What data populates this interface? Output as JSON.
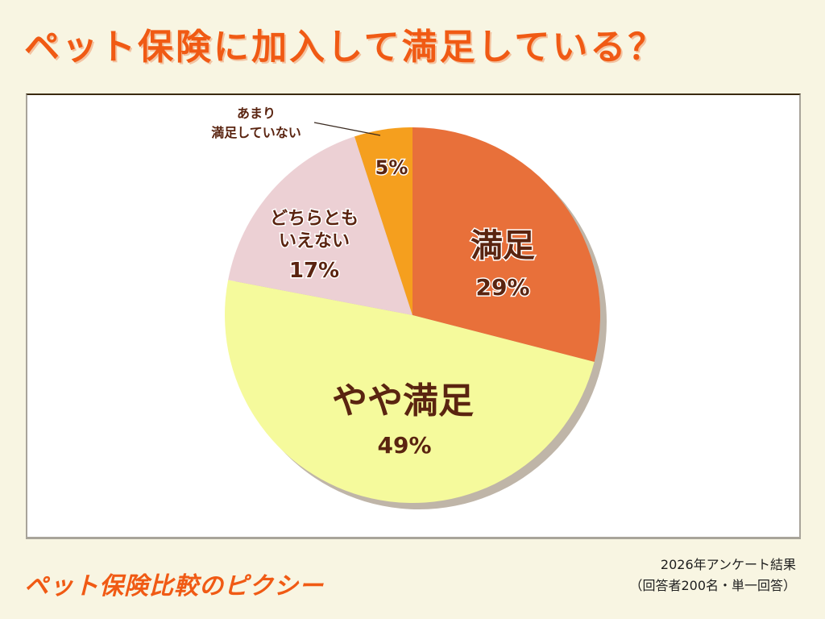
{
  "header": {
    "title": "ペット保険に加入して満足している？"
  },
  "footer": {
    "brand": "ペット保険比較のピクシー",
    "note_line1": "2026年アンケート結果",
    "note_line2": "（回答者200名・単一回答）"
  },
  "chart_data": {
    "type": "pie",
    "title": "ペット保険に加入して満足している？",
    "start_angle": "12 o'clock",
    "direction": "clockwise",
    "categories": [
      "満足",
      "やや満足",
      "どちらともいえない",
      "あまり満足していない"
    ],
    "values": [
      29,
      49,
      17,
      5
    ],
    "unit": "%",
    "colors": [
      "#e8703a",
      "#f5fa9c",
      "#ecd0d4",
      "#f59f1e"
    ],
    "labels": [
      {
        "name": "満足",
        "value_label": "29%"
      },
      {
        "name": "やや満足",
        "value_label": "49%"
      },
      {
        "name_line1": "どちらとも",
        "name_line2": "いえない",
        "value_label": "17%"
      },
      {
        "name_line1": "あまり",
        "name_line2": "満足していない",
        "value_label": "5%",
        "leader_line": true
      }
    ],
    "source": "2026年アンケート結果（回答者200名・単一回答）",
    "legend": "none (labels inside slices)"
  },
  "colors": {
    "background": "#f8f5e2",
    "title": "#f05a14",
    "label_text": "#5a2410",
    "shadow": "#bfb5a8"
  }
}
